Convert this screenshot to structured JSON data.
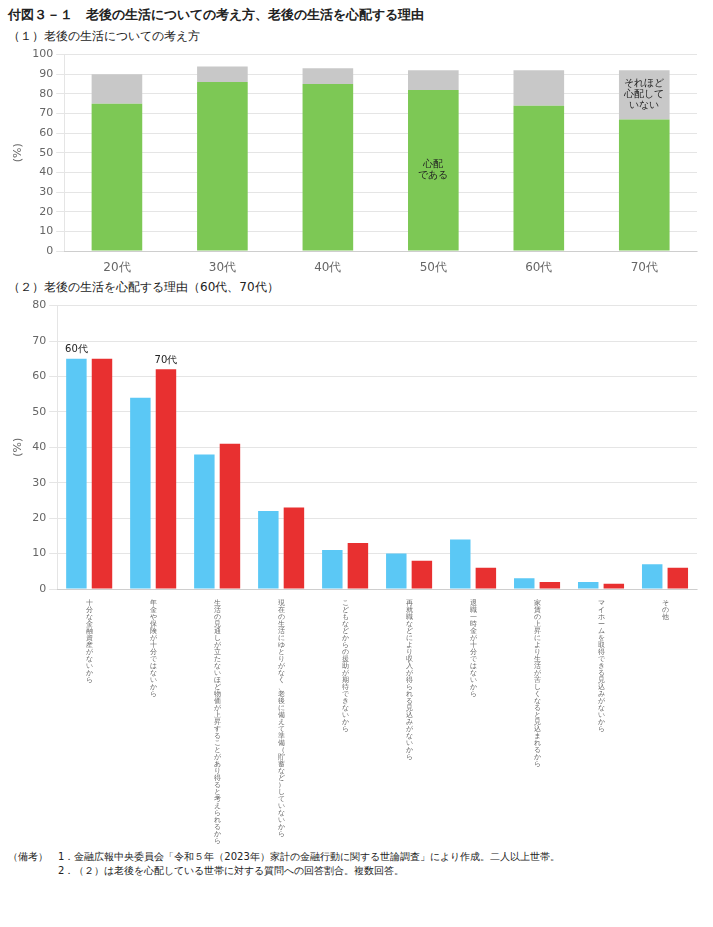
{
  "title": "付図３－１　老後の生活についての考え方、老後の生活を心配する理由",
  "notes": [
    "（備考）　1．金融広報中央委員会「令和５年（2023年）家計の金融行動に関する世論調査」により作成。二人以上世帯。",
    "　　　　　2．（２）は老後を心配している世帯に対する質問への回答割合。複数回答。"
  ],
  "chart_data": [
    {
      "type": "bar",
      "title": "（１）老後の生活についての考え方",
      "categories": [
        "20代",
        "30代",
        "40代",
        "50代",
        "60代",
        "70代"
      ],
      "series": [
        {
          "name": "心配\nである",
          "color": "#7dc855",
          "values": [
            75.0,
            86.0,
            85.0,
            82.0,
            74.0,
            67.0
          ]
        },
        {
          "name": "それほど\n心配して\nいない",
          "color": "#c8c8c8",
          "values": [
            15.0,
            8.0,
            8.0,
            10.0,
            18.0,
            25.0
          ]
        }
      ],
      "stacked": true,
      "ylabel": "(%)",
      "ylim": [
        0,
        100
      ],
      "yticks": [
        0,
        10,
        20,
        30,
        40,
        50,
        60,
        70,
        80,
        90,
        100
      ],
      "grid": true
    },
    {
      "type": "bar",
      "title": "（２）老後の生活を心配する理由（60代、70代）",
      "categories": [
        "十\n分\nな\n金\n融\n資\n産\nが\nな\nい\nか\nら",
        "年\n金\nや\n保\n険\nが\n十\n分\nで\nは\nな\nい\nか\nら",
        "生\n活\nの\n見\n通\nし\nが\n立\nた\nな\nい\nほ\nど\n物\n価\nが\n上\n昇\nす\nる\nこ\nと\nが\nあ\nり\n得\nる\nと\n考\nえ\nら\nれ\nる\nか\nら",
        "現\n在\nの\n生\n活\nに\nゆ\nと\nり\nが\nな\nく\n、\n老\n後\nに\n備\nえ\nて\n準\n備\n（\n貯\n蓄\nな\nど\n）\nし\nて\nい\nな\nい\nか\nら",
        "こ\nど\nも\nな\nど\nか\nら\nの\n援\n助\nが\n期\n待\nで\nき\nな\nい\nか\nら",
        "再\n就\n職\nな\nど\nに\nよ\nり\n収\n入\nが\n得\nら\nれ\nる\n見\n込\nみ\nが\nな\nい\nか\nら",
        "退\n職\n一\n時\n金\nが\n十\n分\nで\nは\nな\nい\nか\nら",
        "家\n賃\nの\n上\n昇\nに\nよ\nり\n生\n活\nが\n苦\nし\nく\nな\nる\nと\n見\n込\nま\nれ\nる\nか\nら",
        "マ\nイ\nホ\nー\nム\nを\n取\n得\nで\nき\nる\n見\n込\nみ\nが\nな\nい\nか\nら",
        "そ\nの\n他"
      ],
      "series": [
        {
          "name": "60代",
          "color": "#5bc8f5",
          "values": [
            65.0,
            54.0,
            38.0,
            22.0,
            11.0,
            10.0,
            14.0,
            3.0,
            2.0,
            7.0
          ]
        },
        {
          "name": "70代",
          "color": "#e83030",
          "values": [
            65.0,
            62.0,
            41.0,
            23.0,
            13.0,
            8.0,
            6.0,
            2.0,
            1.5,
            6.0
          ]
        }
      ],
      "stacked": false,
      "ylabel": "(%)",
      "ylim": [
        0,
        80
      ],
      "yticks": [
        0,
        10,
        20,
        30,
        40,
        50,
        60,
        70,
        80
      ],
      "grid": true
    }
  ]
}
